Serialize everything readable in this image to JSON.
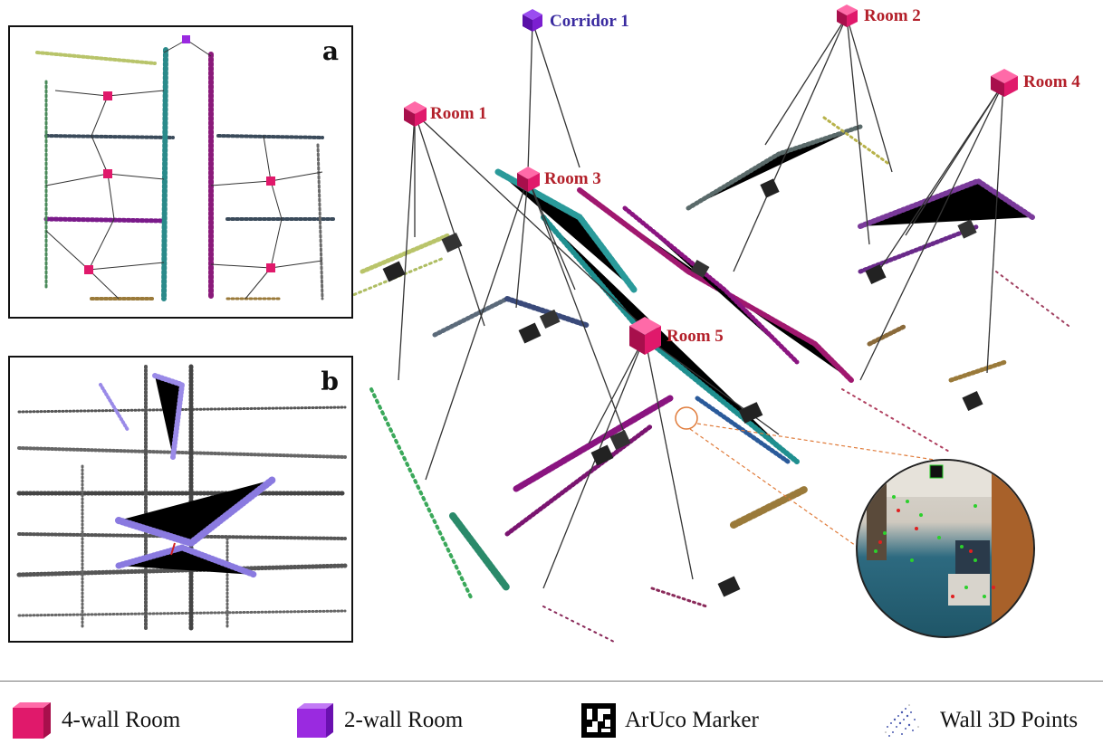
{
  "panels": {
    "a": {
      "letter": "a"
    },
    "b": {
      "letter": "b"
    }
  },
  "nodes": {
    "corridor1": "Corridor 1",
    "room1": "Room 1",
    "room2": "Room 2",
    "room3": "Room 3",
    "room4": "Room 4",
    "room5": "Room 5"
  },
  "legend": {
    "four_wall": "4-wall Room",
    "two_wall": "2-wall Room",
    "aruco": "ArUco Marker",
    "wall_points": "Wall 3D Points"
  },
  "colors": {
    "room": "#e0196b",
    "corridor": "#7b1fd0",
    "room_label": "#b3202a",
    "corridor_label": "#3a2ba0",
    "zoom_link": "#e07b3a"
  }
}
